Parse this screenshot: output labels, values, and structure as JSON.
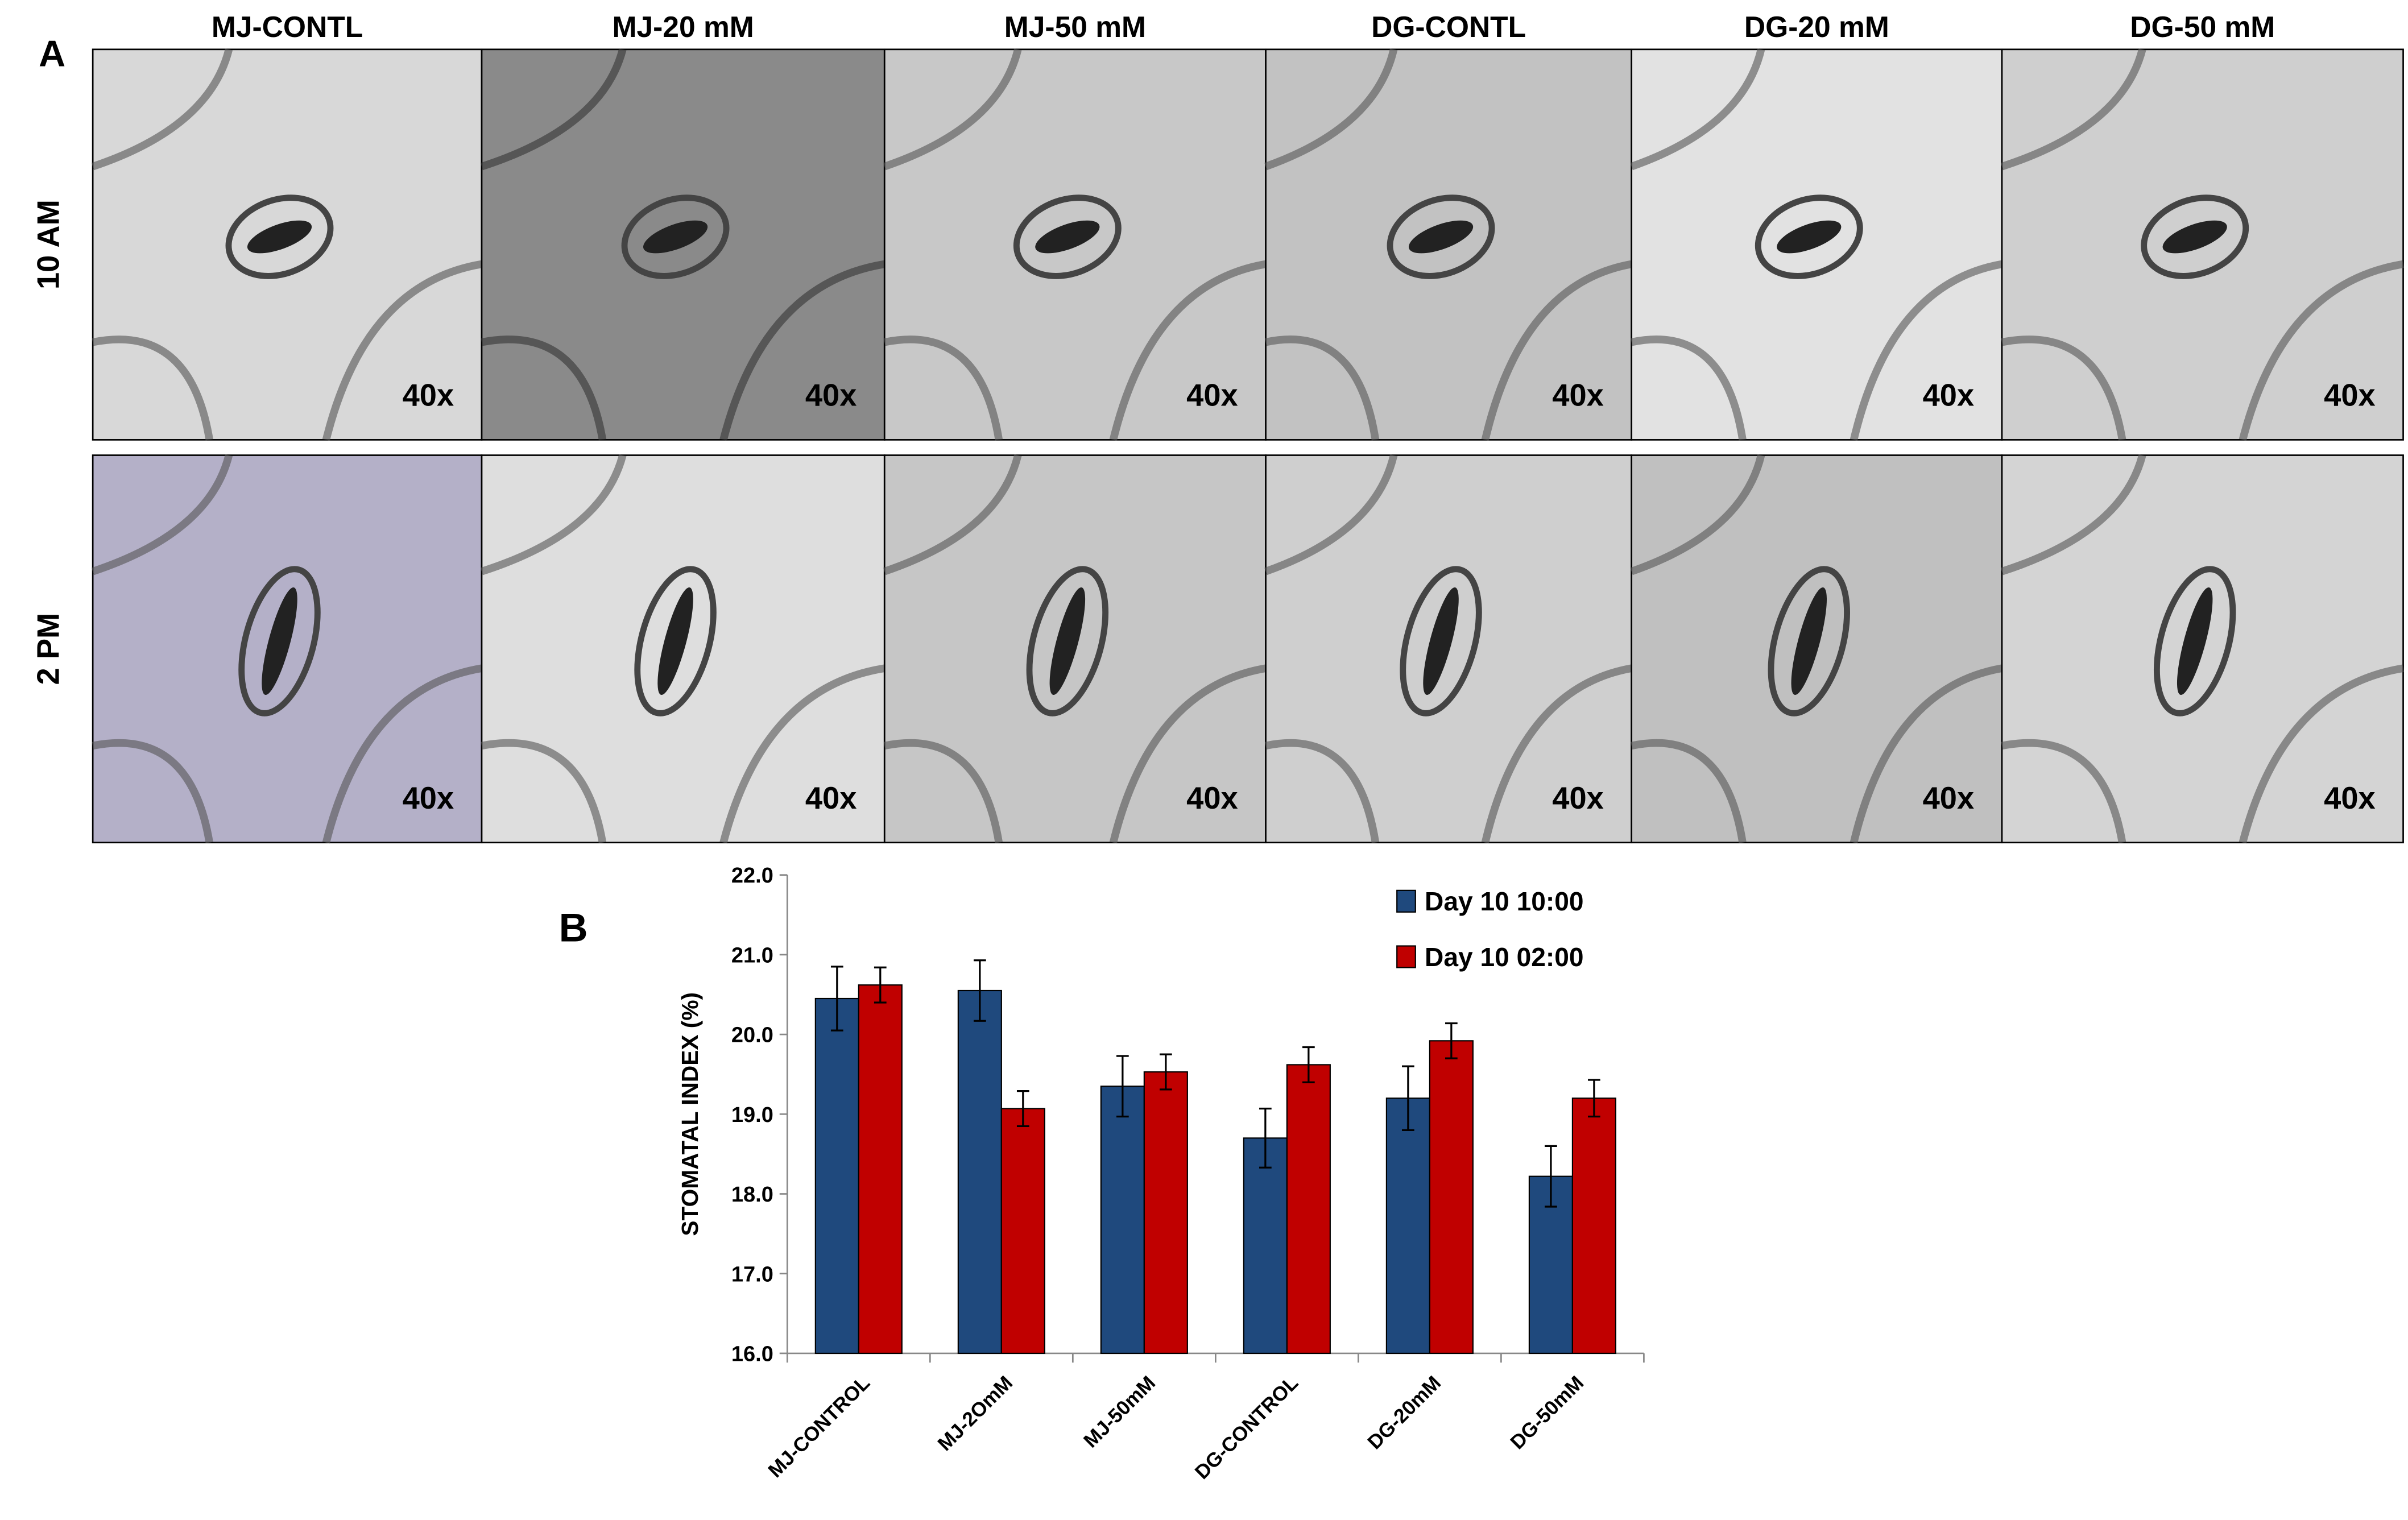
{
  "panel_labels": [
    "A",
    "B"
  ],
  "micrographs": {
    "columns": [
      "MJ-CONTL",
      "MJ-20 mM",
      "MJ-50 mM",
      "DG-CONTL",
      "DG-20 mM",
      "DG-50 mM"
    ],
    "rows": [
      "10 AM",
      "2 PM"
    ],
    "magnification": "40x"
  },
  "chart_data": {
    "type": "bar",
    "y_label": "STOMATAL INDEX (%)",
    "categories": [
      "MJ-CONTROL",
      "MJ-2OmM",
      "MJ-50mM",
      "DG-CONTROL",
      "DG-20mM",
      "DG-50mM"
    ],
    "series": [
      {
        "name": "Day 10 10:00",
        "color": "#1f497d",
        "values": [
          20.45,
          20.55,
          19.35,
          18.7,
          19.2,
          18.22
        ],
        "errors": [
          0.4,
          0.38,
          0.38,
          0.37,
          0.4,
          0.38
        ]
      },
      {
        "name": "Day 10 02:00",
        "color": "#c00000",
        "values": [
          20.62,
          19.07,
          19.53,
          19.62,
          19.92,
          19.2
        ],
        "errors": [
          0.22,
          0.22,
          0.22,
          0.22,
          0.22,
          0.23
        ]
      }
    ],
    "ylim": [
      16,
      22
    ],
    "yticks": [
      {
        "value": 16,
        "label": "16.0"
      },
      {
        "value": 17,
        "label": "17.0"
      },
      {
        "value": 18,
        "label": "18.0"
      },
      {
        "value": 19,
        "label": "19.0"
      },
      {
        "value": 20,
        "label": "20.0"
      },
      {
        "value": 21,
        "label": "21.0"
      },
      {
        "value": 22,
        "label": "22.0"
      }
    ],
    "legend": "upper right"
  }
}
